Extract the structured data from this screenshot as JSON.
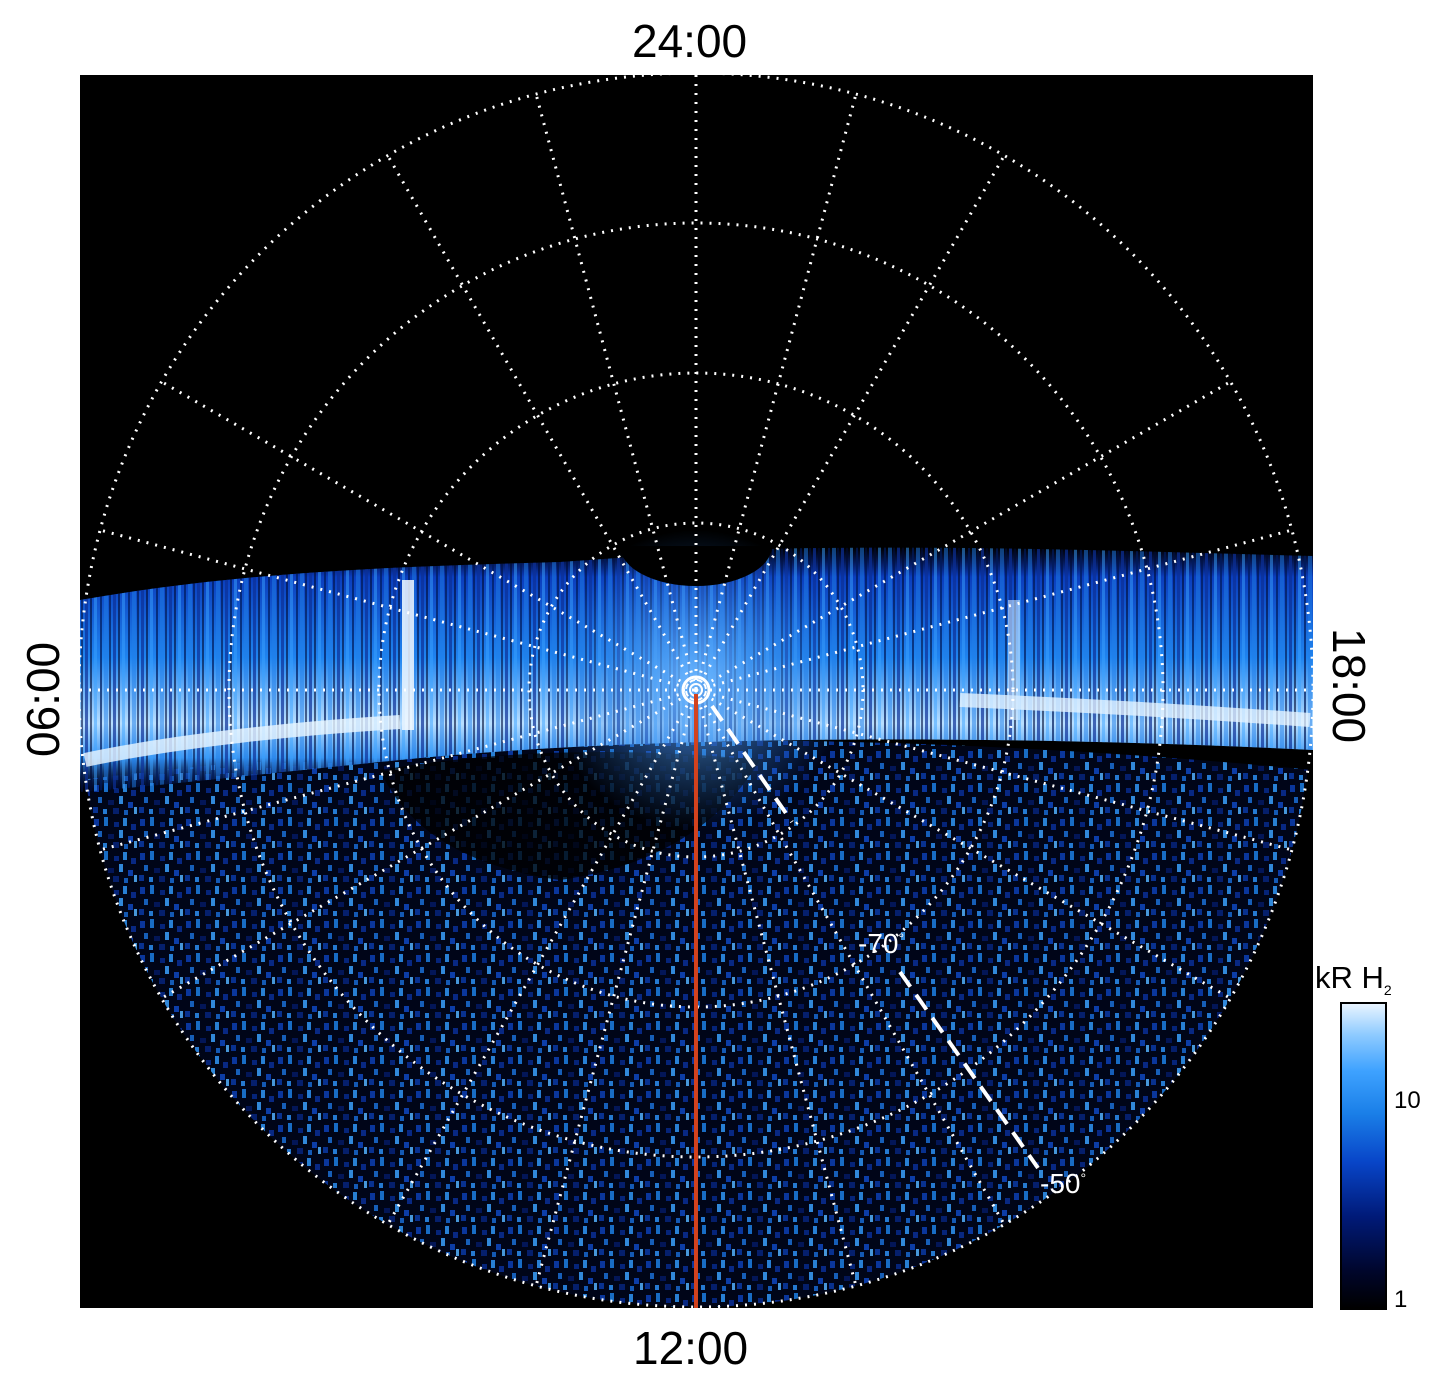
{
  "local_time_labels": {
    "top": "24:00",
    "bottom": "12:00",
    "left": "06:00",
    "right": "18:00"
  },
  "latitude_labels": {
    "lat_70": "-70",
    "lat_50": "-50",
    "degree_symbol": "°"
  },
  "colorbar": {
    "title_main": "kR H",
    "title_sub": "2",
    "tick_10": "10",
    "tick_1": "1",
    "range": [
      1,
      30
    ],
    "scale": "log"
  },
  "colors": {
    "background": "#000000",
    "grid": "#ffffff",
    "meridian_line": "#d2421e",
    "emission_low": "#001a78",
    "emission_mid": "#1a7fe8",
    "emission_high": "#e8f4ff"
  }
}
